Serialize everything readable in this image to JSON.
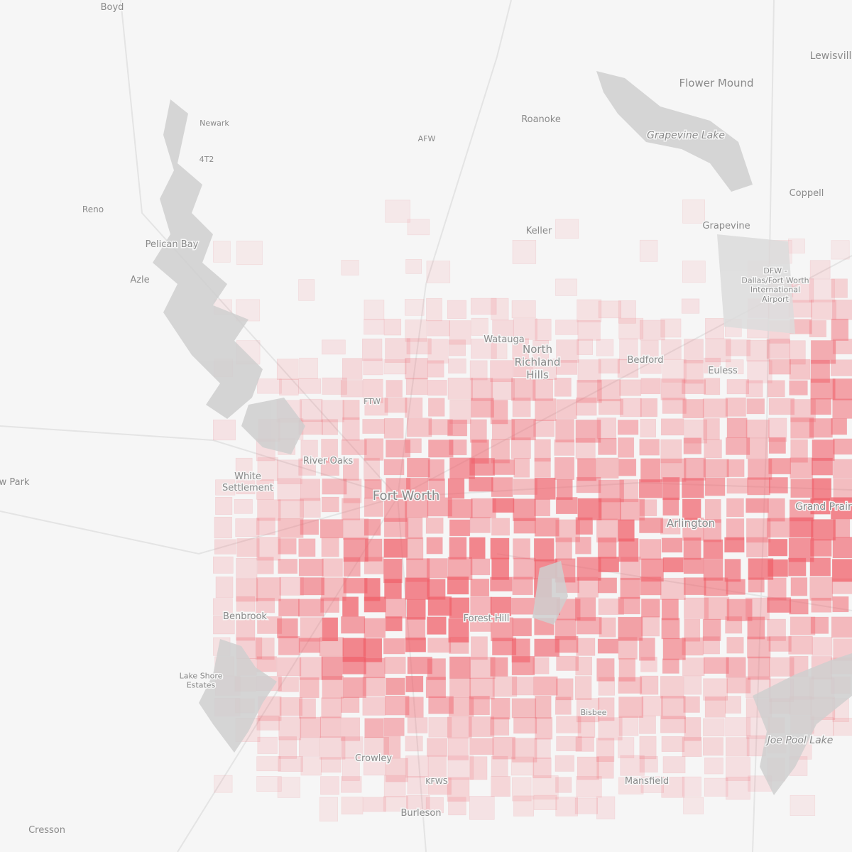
{
  "places": [
    {
      "lines": [
        "Boyd"
      ]
    },
    {
      "lines": [
        "Newark"
      ]
    },
    {
      "lines": [
        "4T2"
      ]
    },
    {
      "lines": [
        "Reno"
      ]
    },
    {
      "lines": [
        "Pelican Bay"
      ]
    },
    {
      "lines": [
        "Azle"
      ]
    },
    {
      "lines": [
        "AFW"
      ]
    },
    {
      "lines": [
        "Roanoke"
      ]
    },
    {
      "lines": [
        "Grapevine Lake"
      ]
    },
    {
      "lines": [
        "Flower Mound"
      ]
    },
    {
      "lines": [
        "Lewisvill"
      ]
    },
    {
      "lines": [
        "Coppell"
      ]
    },
    {
      "lines": [
        "Grapevine"
      ]
    },
    {
      "lines": [
        "Keller"
      ]
    },
    {
      "lines": [
        "DFW -",
        "Dallas/Fort Worth",
        "International",
        "Airport"
      ]
    },
    {
      "lines": [
        "Watauga"
      ]
    },
    {
      "lines": [
        "North",
        "Richland",
        "Hills"
      ]
    },
    {
      "lines": [
        "Bedford"
      ]
    },
    {
      "lines": [
        "Euless"
      ]
    },
    {
      "lines": [
        "FTW"
      ]
    },
    {
      "lines": [
        "River Oaks"
      ]
    },
    {
      "lines": [
        "White",
        "Settlement"
      ]
    },
    {
      "lines": [
        "Fort Worth"
      ]
    },
    {
      "lines": [
        "Arlington"
      ]
    },
    {
      "lines": [
        "Grand Prair"
      ]
    },
    {
      "lines": [
        "w Park"
      ]
    },
    {
      "lines": [
        "Benbrook"
      ]
    },
    {
      "lines": [
        "Forest Hill"
      ]
    },
    {
      "lines": [
        "Lake Shore",
        "Estates"
      ]
    },
    {
      "lines": [
        "Bisbee"
      ]
    },
    {
      "lines": [
        "Joe Pool Lake"
      ]
    },
    {
      "lines": [
        "Crowley"
      ]
    },
    {
      "lines": [
        "KFWS"
      ]
    },
    {
      "lines": [
        "Mansfield"
      ]
    },
    {
      "lines": [
        "Burleson"
      ]
    },
    {
      "lines": [
        "Cresson"
      ]
    }
  ]
}
